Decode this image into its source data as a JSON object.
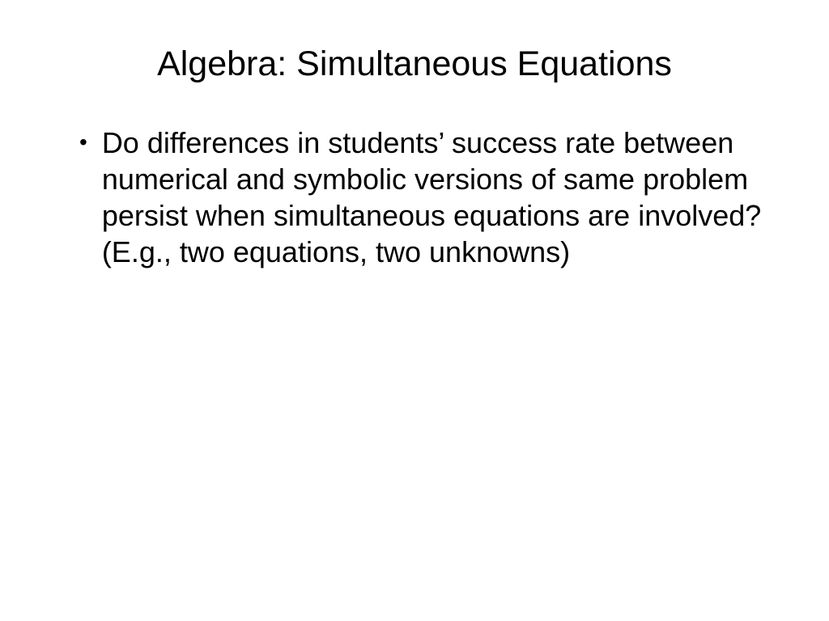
{
  "slide": {
    "title": "Algebra: Simultaneous Equations",
    "bullets": [
      {
        "text": "Do differences in students’ success rate between numerical and symbolic versions of same problem persist when simultaneous equations are involved? (E.g., two equations, two unknowns)"
      }
    ]
  },
  "style": {
    "background_color": "#ffffff",
    "text_color": "#000000",
    "title_fontsize": 43,
    "title_fontweight": 400,
    "body_fontsize": 36,
    "body_fontweight": 400,
    "font_family": "Arial, Helvetica, sans-serif",
    "bullet_marker": "•"
  }
}
